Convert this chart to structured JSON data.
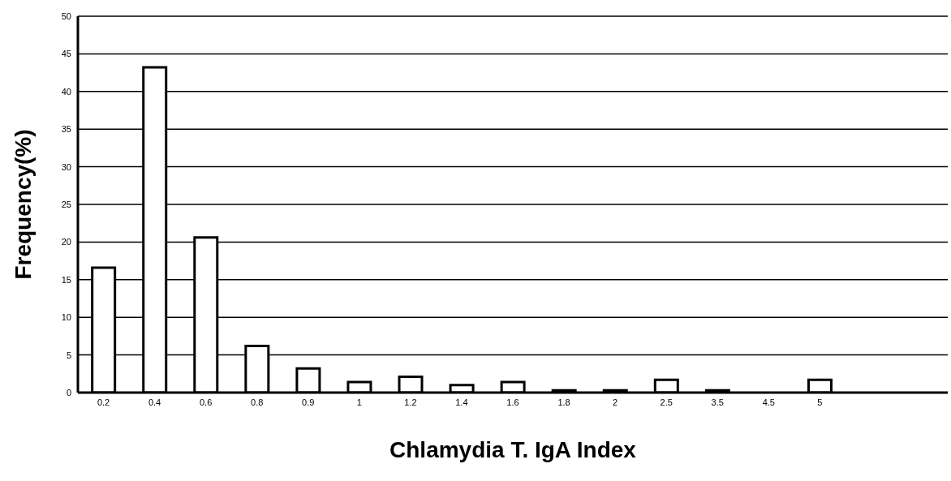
{
  "chart_data": {
    "type": "bar",
    "xlabel": "Chlamydia T. IgA Index",
    "ylabel": "Frequency(%)",
    "categories": [
      "0.2",
      "0.4",
      "0.6",
      "0.8",
      "0.9",
      "1",
      "1.2",
      "1.4",
      "1.6",
      "1.8",
      "2",
      "2.5",
      "3.5",
      "4.5",
      "5",
      null,
      null
    ],
    "values": [
      16.6,
      43.2,
      20.6,
      6.2,
      3.2,
      1.4,
      2.1,
      1.0,
      1.4,
      0.3,
      0.3,
      1.7,
      0.3,
      0,
      1.7,
      null,
      null
    ],
    "color": "#ffffff",
    "ylim": [
      0,
      50
    ],
    "yticks": [
      0,
      5,
      10,
      15,
      20,
      25,
      30,
      35,
      40,
      45,
      50
    ],
    "grid": "y",
    "legend": false
  }
}
